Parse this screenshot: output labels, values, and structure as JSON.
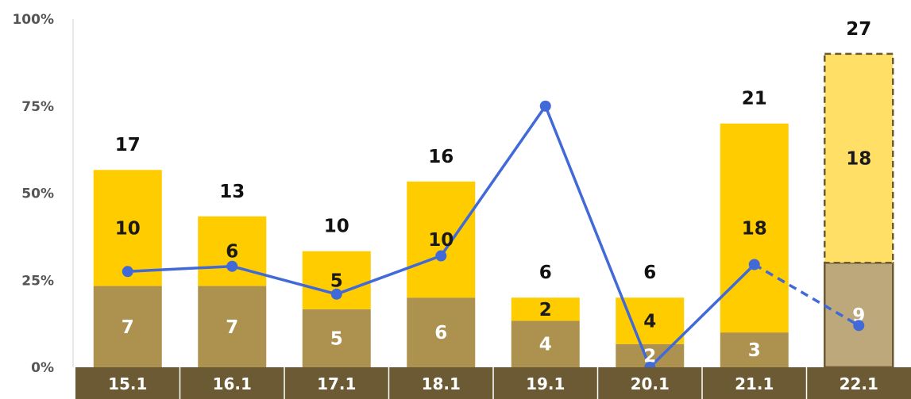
{
  "chart_data": {
    "type": "bar",
    "stacked": true,
    "categories": [
      "15.1",
      "16.1",
      "17.1",
      "18.1",
      "19.1",
      "20.1",
      "21.1",
      "22.1"
    ],
    "y_axis": {
      "ylim": [
        0,
        100
      ],
      "ticks": [
        "0%",
        "25%",
        "50%",
        "75%",
        "100%"
      ],
      "tick_values": [
        0,
        25,
        50,
        75,
        100
      ]
    },
    "series": [
      {
        "kind": "bar",
        "values": [
          7,
          7,
          5,
          6,
          4,
          2,
          3,
          9
        ],
        "color": "#ad914f",
        "projected_color": "#bca87a"
      },
      {
        "kind": "bar",
        "values": [
          10,
          6,
          5,
          10,
          2,
          4,
          18,
          18
        ],
        "color": "#ffcc00",
        "projected_color": "#ffdf66"
      },
      {
        "kind": "line",
        "values": [
          27.5,
          29,
          21,
          32,
          75,
          0,
          29.5,
          12
        ],
        "color": "#4169d8",
        "dashed_from_index": 6
      }
    ],
    "totals": [
      "17",
      "13",
      "10",
      "16",
      "6",
      "6",
      "21",
      "27"
    ],
    "bottom_labels": [
      "7",
      "7",
      "5",
      "6",
      "4",
      "2",
      "3",
      "9"
    ],
    "top_labels": [
      "10",
      "6",
      "5",
      "10",
      "2",
      "4",
      "18",
      "18"
    ],
    "projected_index": 7,
    "scale_max_count": 30,
    "axis_band_color": "#6b5a33",
    "grid": false
  }
}
